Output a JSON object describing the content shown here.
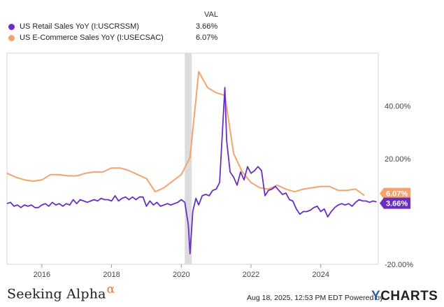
{
  "chart_data": {
    "type": "line",
    "title": "",
    "value_header": "VAL",
    "xlabel": "",
    "ylabel": "",
    "x_range": [
      2015.0,
      2025.65
    ],
    "ylim": [
      -20,
      60
    ],
    "x_ticks": [
      2016,
      2018,
      2020,
      2022,
      2024
    ],
    "x_tick_labels": [
      "2016",
      "2018",
      "2020",
      "2022",
      "2024"
    ],
    "y_ticks": [
      40,
      20,
      -20
    ],
    "y_tick_labels": [
      "40.00%",
      "20.00%",
      "-20.00%"
    ],
    "recession_band": [
      2020.1,
      2020.3
    ],
    "grid": false,
    "series": [
      {
        "name": "US Retail Sales YoY (I:USCRSSM)",
        "legend_value": "3.66%",
        "end_label": "3.66%",
        "color": "#6a2fbf",
        "x": [
          2015.0,
          2015.1,
          2015.2,
          2015.3,
          2015.4,
          2015.5,
          2015.6,
          2015.7,
          2015.8,
          2015.9,
          2016.0,
          2016.1,
          2016.2,
          2016.3,
          2016.4,
          2016.5,
          2016.6,
          2016.7,
          2016.8,
          2016.9,
          2017.0,
          2017.1,
          2017.2,
          2017.3,
          2017.4,
          2017.5,
          2017.6,
          2017.7,
          2017.8,
          2017.9,
          2018.0,
          2018.1,
          2018.2,
          2018.3,
          2018.4,
          2018.5,
          2018.6,
          2018.7,
          2018.8,
          2018.9,
          2019.0,
          2019.1,
          2019.2,
          2019.3,
          2019.4,
          2019.5,
          2019.6,
          2019.7,
          2019.8,
          2019.9,
          2020.0,
          2020.1,
          2020.2,
          2020.25,
          2020.33,
          2020.42,
          2020.5,
          2020.6,
          2020.7,
          2020.8,
          2020.9,
          2021.0,
          2021.1,
          2021.2,
          2021.25,
          2021.3,
          2021.4,
          2021.5,
          2021.6,
          2021.7,
          2021.8,
          2021.9,
          2022.0,
          2022.1,
          2022.2,
          2022.3,
          2022.4,
          2022.5,
          2022.6,
          2022.7,
          2022.8,
          2022.9,
          2023.0,
          2023.1,
          2023.2,
          2023.3,
          2023.4,
          2023.5,
          2023.6,
          2023.7,
          2023.8,
          2023.9,
          2024.0,
          2024.1,
          2024.2,
          2024.3,
          2024.4,
          2024.5,
          2024.6,
          2024.7,
          2024.8,
          2024.9,
          2025.0,
          2025.1,
          2025.2,
          2025.3,
          2025.4,
          2025.5,
          2025.6
        ],
        "y": [
          3.0,
          3.5,
          2.0,
          2.5,
          1.5,
          2.5,
          2.0,
          2.5,
          1.5,
          1.5,
          2.5,
          3.0,
          2.0,
          3.5,
          2.5,
          3.0,
          2.0,
          3.0,
          2.5,
          4.5,
          3.0,
          4.5,
          4.0,
          3.5,
          4.0,
          4.5,
          4.0,
          5.0,
          4.5,
          4.5,
          4.0,
          6.0,
          4.0,
          5.0,
          5.5,
          4.5,
          5.5,
          4.5,
          5.5,
          5.5,
          2.0,
          4.0,
          2.5,
          3.5,
          2.0,
          2.5,
          3.0,
          2.5,
          3.0,
          3.5,
          4.5,
          3.5,
          -5.0,
          -16.0,
          0.0,
          5.0,
          2.5,
          6.0,
          6.5,
          6.0,
          8.0,
          8.5,
          11.0,
          35.0,
          47.0,
          27.0,
          15.0,
          13.0,
          10.0,
          15.0,
          12.0,
          17.0,
          14.5,
          15.5,
          17.0,
          15.5,
          6.0,
          8.0,
          8.5,
          9.5,
          8.0,
          6.5,
          7.0,
          4.5,
          4.0,
          1.0,
          -1.0,
          0.0,
          0.0,
          0.5,
          1.5,
          2.0,
          0.0,
          1.0,
          -2.0,
          0.0,
          1.5,
          2.5,
          3.0,
          2.5,
          3.0,
          2.0,
          3.5,
          4.5,
          4.0,
          4.0,
          3.5,
          4.0,
          3.66
        ]
      },
      {
        "name": "US E-Commerce Sales YoY (I:USECSAC)",
        "legend_value": "6.07%",
        "end_label": "6.07%",
        "color": "#f5a36e",
        "x": [
          2015.0,
          2015.25,
          2015.5,
          2015.75,
          2016.0,
          2016.25,
          2016.5,
          2016.75,
          2017.0,
          2017.25,
          2017.5,
          2017.75,
          2018.0,
          2018.25,
          2018.5,
          2018.75,
          2019.0,
          2019.25,
          2019.5,
          2019.75,
          2020.0,
          2020.25,
          2020.5,
          2020.75,
          2021.0,
          2021.25,
          2021.5,
          2021.75,
          2022.0,
          2022.25,
          2022.5,
          2022.75,
          2023.0,
          2023.25,
          2023.5,
          2023.75,
          2024.0,
          2024.25,
          2024.5,
          2024.75,
          2025.0,
          2025.25
        ],
        "y": [
          14.5,
          13.0,
          12.0,
          11.5,
          12.0,
          14.0,
          14.0,
          13.5,
          13.5,
          14.5,
          15.0,
          15.0,
          16.5,
          16.5,
          15.5,
          14.0,
          12.5,
          7.5,
          9.0,
          11.5,
          14.0,
          20.5,
          53.0,
          47.0,
          45.0,
          44.0,
          22.0,
          15.0,
          11.0,
          9.0,
          8.5,
          10.0,
          8.5,
          7.5,
          8.5,
          9.0,
          9.5,
          9.5,
          8.0,
          8.0,
          8.5,
          6.07
        ]
      }
    ]
  },
  "footer": {
    "brand": "Seeking Alpha",
    "brand_symbol": "α",
    "timestamp": "Aug 18, 2025, 12:53 PM EDT",
    "powered_by": "Powered by",
    "ycharts": "CHARTS",
    "ycharts_y": "Y"
  }
}
